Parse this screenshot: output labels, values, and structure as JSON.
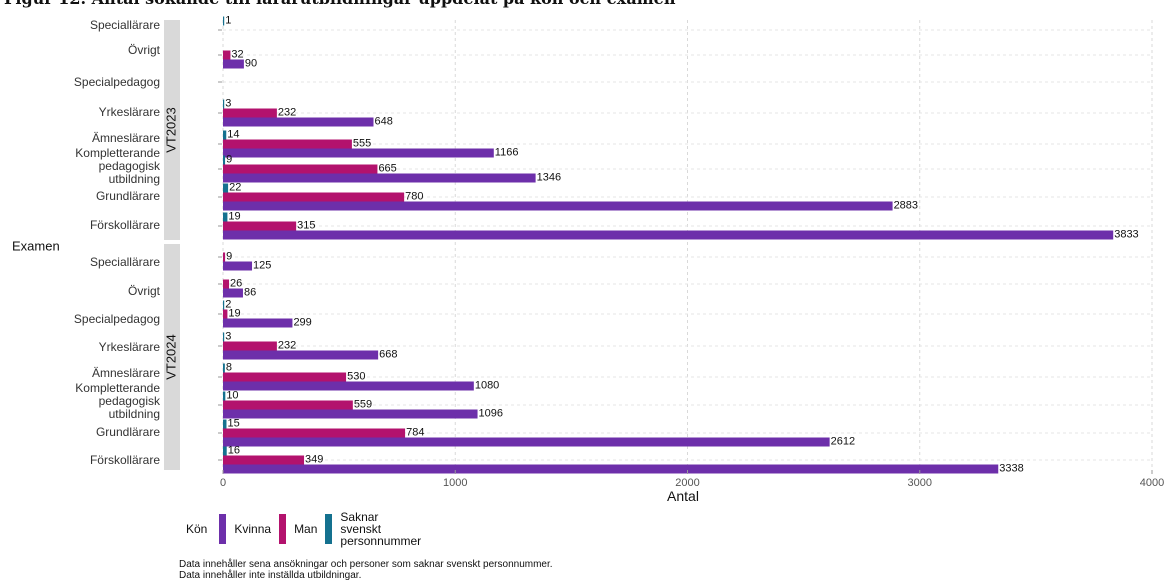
{
  "title": "Figur 12. Antal sökande till lärarutbildningar uppdelat på kön och examen",
  "colors": {
    "Kvinna": "#6d2faa",
    "Man": "#b3126d",
    "Saknar svenskt personnummer": "#14718f"
  },
  "legend": {
    "title": "Kön",
    "items": [
      {
        "label": "Kvinna",
        "color": "#6d2faa"
      },
      {
        "label": "Man",
        "color": "#b3126d"
      },
      {
        "label": "Saknar svenskt personnummer",
        "color": "#14718f"
      }
    ]
  },
  "notes": [
    "Data innehåller sena ansökningar och personer som saknar svenskt personnummer.",
    "Data innehåller inte inställda utbildningar."
  ],
  "chart_data": {
    "type": "bar",
    "orientation": "horizontal",
    "xlabel": "Antal",
    "ylabel": "Examen",
    "xlim": [
      0,
      4000
    ],
    "xticks": [
      0,
      1000,
      2000,
      3000,
      4000
    ],
    "grid": true,
    "legend_position": "bottom",
    "series_names": [
      "Kvinna",
      "Man",
      "Saknar svenskt personnummer"
    ],
    "panels": [
      {
        "label": "VT2023",
        "categories": [
          "Speciallärare",
          "Övrigt",
          "Specialpedagog",
          "Yrkeslärare",
          "Ämneslärare",
          "Kompletterande pedagogisk utbildning",
          "Grundlärare",
          "Förskollärare"
        ],
        "Kvinna": [
          null,
          90,
          null,
          648,
          1166,
          1346,
          2883,
          3833
        ],
        "Man": [
          null,
          32,
          null,
          232,
          555,
          665,
          780,
          315
        ],
        "Saknar svenskt personnummer": [
          1,
          null,
          null,
          3,
          14,
          9,
          22,
          19
        ]
      },
      {
        "label": "VT2024",
        "categories": [
          "Speciallärare",
          "Övrigt",
          "Specialpedagog",
          "Yrkeslärare",
          "Ämneslärare",
          "Kompletterande pedagogisk utbildning",
          "Grundlärare",
          "Förskollärare"
        ],
        "Kvinna": [
          125,
          86,
          299,
          668,
          1080,
          1096,
          2612,
          3338
        ],
        "Man": [
          9,
          26,
          19,
          232,
          530,
          559,
          784,
          349
        ],
        "Saknar svenskt personnummer": [
          null,
          null,
          2,
          3,
          8,
          10,
          15,
          16
        ]
      }
    ]
  }
}
